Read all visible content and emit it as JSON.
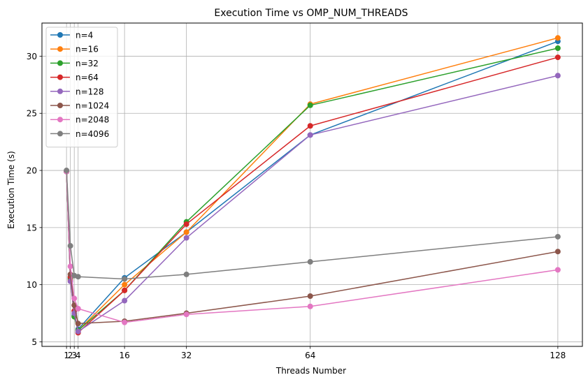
{
  "chart_data": {
    "type": "line",
    "title": "Execution Time vs OMP_NUM_THREADS",
    "xlabel": "Threads Number",
    "ylabel": "Execution Time (s)",
    "x": [
      1,
      2,
      3,
      4,
      16,
      32,
      64,
      128
    ],
    "xticks": [
      1,
      2,
      3,
      4,
      16,
      32,
      64,
      128
    ],
    "xlim": [
      -5.35,
      134.35
    ],
    "yticks": [
      5,
      10,
      15,
      20,
      25,
      30
    ],
    "ylim": [
      4.6,
      32.9
    ],
    "grid": true,
    "legend_position": "top-left",
    "series": [
      {
        "name": "n=4",
        "color": "#1f77b4",
        "values": [
          19.9,
          10.5,
          7.3,
          6.1,
          10.6,
          14.6,
          23.1,
          31.3
        ]
      },
      {
        "name": "n=16",
        "color": "#ff7f0e",
        "values": [
          19.9,
          10.4,
          7.2,
          6.0,
          10.0,
          14.6,
          25.8,
          31.6
        ]
      },
      {
        "name": "n=32",
        "color": "#2ca02c",
        "values": [
          19.9,
          10.6,
          7.2,
          6.0,
          9.5,
          15.5,
          25.7,
          30.7
        ]
      },
      {
        "name": "n=64",
        "color": "#d62728",
        "values": [
          19.9,
          10.7,
          7.7,
          5.8,
          9.5,
          15.3,
          23.9,
          29.9
        ]
      },
      {
        "name": "n=128",
        "color": "#9467bd",
        "values": [
          19.9,
          10.3,
          7.5,
          5.9,
          8.6,
          14.1,
          23.1,
          28.3
        ]
      },
      {
        "name": "n=1024",
        "color": "#8c564b",
        "values": [
          19.9,
          10.9,
          8.2,
          6.6,
          6.8,
          7.5,
          9.0,
          12.9
        ]
      },
      {
        "name": "n=2048",
        "color": "#e377c2",
        "values": [
          19.9,
          11.6,
          8.8,
          7.9,
          6.7,
          7.4,
          8.1,
          11.3
        ]
      },
      {
        "name": "n=4096",
        "color": "#7f7f7f",
        "values": [
          20.0,
          13.4,
          10.8,
          10.7,
          10.5,
          10.9,
          12.0,
          14.2
        ]
      }
    ]
  }
}
